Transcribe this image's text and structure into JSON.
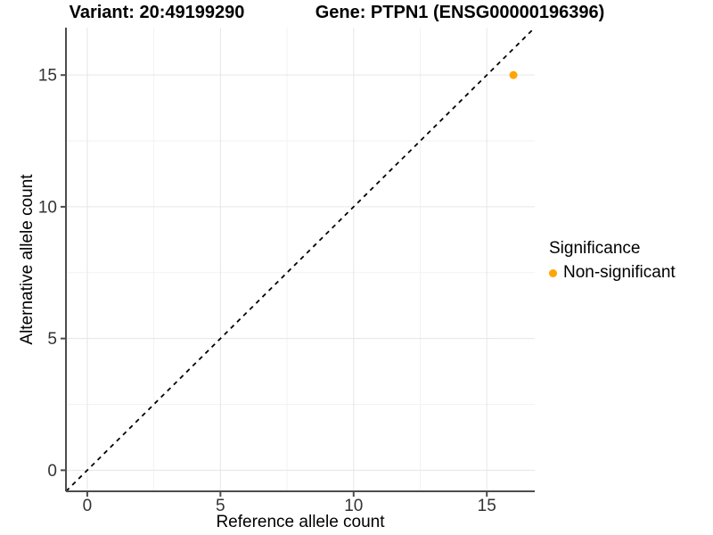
{
  "chart_data": {
    "type": "scatter",
    "title_left": "Variant: 20:49199290",
    "title_right": "Gene: PTPN1 (ENSG00000196396)",
    "xlabel": "Reference allele count",
    "ylabel": "Alternative allele count",
    "xlim": [
      -0.8,
      16.8
    ],
    "ylim": [
      -0.8,
      16.8
    ],
    "x_ticks": [
      0,
      5,
      10,
      15
    ],
    "y_ticks": [
      0,
      5,
      10,
      15
    ],
    "minor_gridlines": [
      2.5,
      7.5,
      12.5
    ],
    "grid": "major and minor, light gray on white panel",
    "points": [
      {
        "x": 16,
        "y": 15,
        "series": "Non-significant"
      }
    ],
    "reference_line": {
      "style": "dashed",
      "slope": 1,
      "intercept": 0
    },
    "legend": {
      "title": "Significance",
      "position": "right",
      "entries": [
        {
          "label": "Non-significant",
          "color": "#FFA500"
        }
      ]
    },
    "colors": {
      "point": "#FFA500",
      "grid_major": "#E6E6E6",
      "grid_minor": "#F2F2F2",
      "axis_line": "#4D4D4D",
      "tick_label": "#333333",
      "reference_line": "#000000",
      "background": "#FFFFFF"
    }
  }
}
